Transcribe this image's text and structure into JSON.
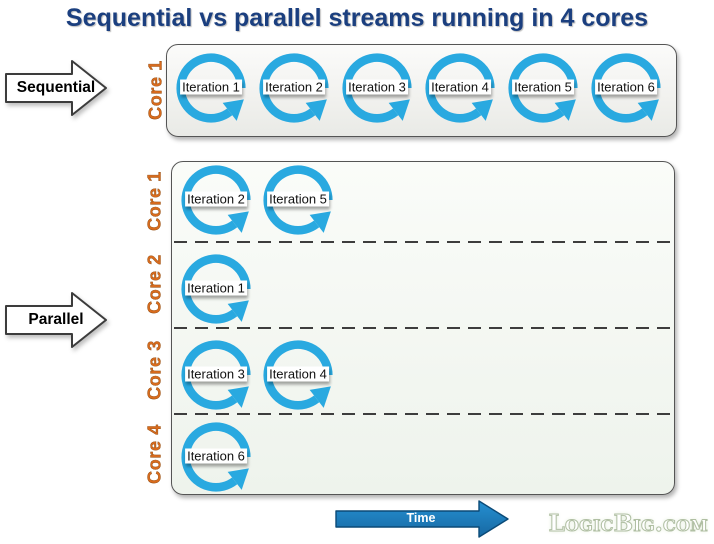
{
  "title": "Sequential vs parallel streams running in 4 cores",
  "colors": {
    "title": "#1b3f7f",
    "core_label": "#d96b1d",
    "ring": "#29a9e0",
    "time_fill_top": "#2590d2",
    "time_fill_bottom": "#1768a2"
  },
  "sequential": {
    "arrow_label": "Sequential",
    "core_label": "Core 1",
    "iterations": [
      "Iteration 1",
      "Iteration 2",
      "Iteration 3",
      "Iteration 4",
      "Iteration 5",
      "Iteration 6"
    ]
  },
  "parallel": {
    "arrow_label": "Parallel",
    "rows": [
      {
        "core_label": "Core 1",
        "iterations": [
          "Iteration 2",
          "Iteration 5"
        ]
      },
      {
        "core_label": "Core 2",
        "iterations": [
          "Iteration 1"
        ]
      },
      {
        "core_label": "Core 3",
        "iterations": [
          "Iteration 3",
          "Iteration 4"
        ]
      },
      {
        "core_label": "Core 4",
        "iterations": [
          "Iteration 6"
        ]
      }
    ]
  },
  "time_label": "Time",
  "logo_text": "LogicBig.com"
}
